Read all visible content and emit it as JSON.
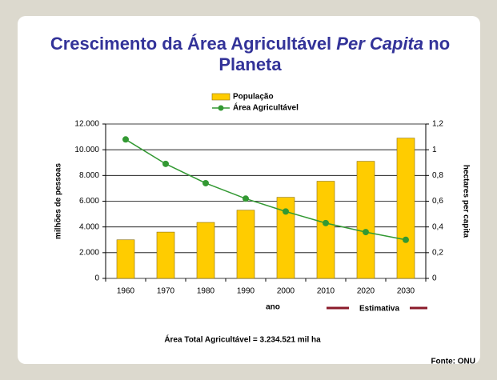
{
  "chart_data": {
    "type": "bar_line",
    "title": {
      "lead": "Crescimento da Área Agricultável",
      "emphasis": "Per Capita",
      "tail": "no Planeta"
    },
    "categories": [
      "1960",
      "1970",
      "1980",
      "1990",
      "2000",
      "2010",
      "2020",
      "2030"
    ],
    "series": [
      {
        "name": "População",
        "type": "bar",
        "color": "#ffcc00",
        "values": [
          3000,
          3600,
          4350,
          5300,
          6300,
          7550,
          9100,
          10900
        ]
      },
      {
        "name": "Área Agricultável",
        "type": "line",
        "axis": "y2",
        "color": "#339933",
        "values": [
          1.08,
          0.89,
          0.74,
          0.62,
          0.52,
          0.43,
          0.36,
          0.3
        ]
      }
    ],
    "ylim": [
      0,
      12000
    ],
    "yticks": [
      0,
      {
        "value": 2000,
        "label": "2.000"
      },
      {
        "value": 4000,
        "label": "4.000"
      },
      {
        "value": 6000,
        "label": "6.000"
      },
      {
        "value": 8000,
        "label": "8.000"
      },
      {
        "value": 10000,
        "label": "10.000"
      },
      {
        "value": 12000,
        "label": "12.000"
      }
    ],
    "y2lim": [
      0,
      1.2
    ],
    "y2ticks": [
      0,
      {
        "value": 0.2,
        "label": "0,2"
      },
      {
        "value": 0.4,
        "label": "0,4"
      },
      {
        "value": 0.6,
        "label": "0,6"
      },
      {
        "value": 0.8,
        "label": "0,8"
      },
      1,
      {
        "value": 1.2,
        "label": "1,2"
      }
    ],
    "y_label": "milhões de pessoas",
    "y2_label": "hectares per capita",
    "x_label": "ano",
    "annotation": "Estimativa",
    "footnote": "Área Total Agricultável = 3.234.521 mil ha",
    "source": "Fonte: ONU",
    "grid": true,
    "legend": "top"
  }
}
